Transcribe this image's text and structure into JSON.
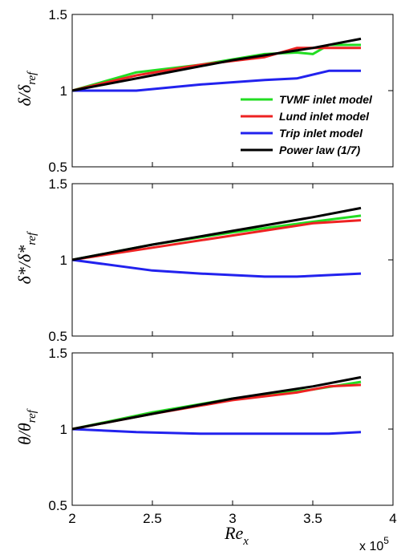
{
  "chart_data": [
    {
      "type": "line",
      "ylabel": {
        "main": "δ/δ",
        "sub": "ref"
      },
      "ylim": [
        0.5,
        1.5
      ],
      "yticks": [
        "0.5",
        "1",
        "1.5"
      ],
      "xlim": [
        200000,
        400000
      ],
      "series": [
        {
          "name": "TVMF inlet model",
          "color": "#22dd22",
          "x": [
            200000,
            240000,
            280000,
            320000,
            340000,
            350000,
            360000,
            380000
          ],
          "y": [
            1.0,
            1.12,
            1.17,
            1.24,
            1.25,
            1.24,
            1.3,
            1.3
          ]
        },
        {
          "name": "Lund inlet model",
          "color": "#ee2222",
          "x": [
            200000,
            240000,
            280000,
            320000,
            340000,
            360000,
            380000
          ],
          "y": [
            1.0,
            1.1,
            1.17,
            1.22,
            1.28,
            1.28,
            1.28
          ]
        },
        {
          "name": "Trip inlet model",
          "color": "#2222ee",
          "x": [
            200000,
            240000,
            280000,
            320000,
            340000,
            360000,
            380000
          ],
          "y": [
            1.0,
            1.0,
            1.04,
            1.07,
            1.08,
            1.13,
            1.13
          ]
        },
        {
          "name": "Power law (1/7)",
          "color": "#000000",
          "x": [
            200000,
            250000,
            300000,
            350000,
            380000
          ],
          "y": [
            1.0,
            1.1,
            1.2,
            1.28,
            1.34
          ]
        }
      ],
      "legend": {
        "position": "bottom-right"
      }
    },
    {
      "type": "line",
      "ylabel": {
        "main": "δ*/δ*",
        "sub": "ref"
      },
      "ylim": [
        0.5,
        1.5
      ],
      "yticks": [
        "0.5",
        "1",
        "1.5"
      ],
      "xlim": [
        200000,
        400000
      ],
      "series": [
        {
          "color": "#22dd22",
          "x": [
            200000,
            250000,
            300000,
            350000,
            380000
          ],
          "y": [
            1.0,
            1.1,
            1.18,
            1.25,
            1.29
          ]
        },
        {
          "color": "#ee2222",
          "x": [
            200000,
            250000,
            300000,
            350000,
            380000
          ],
          "y": [
            1.0,
            1.08,
            1.16,
            1.24,
            1.26
          ]
        },
        {
          "color": "#2222ee",
          "x": [
            200000,
            250000,
            280000,
            320000,
            340000,
            360000,
            380000
          ],
          "y": [
            1.0,
            0.93,
            0.91,
            0.89,
            0.89,
            0.9,
            0.91
          ]
        },
        {
          "color": "#000000",
          "x": [
            200000,
            250000,
            300000,
            350000,
            380000
          ],
          "y": [
            1.0,
            1.1,
            1.19,
            1.28,
            1.34
          ]
        }
      ]
    },
    {
      "type": "line",
      "ylabel": {
        "main": "θ/θ",
        "sub": "ref"
      },
      "ylim": [
        0.5,
        1.5
      ],
      "yticks": [
        "0.5",
        "1",
        "1.5"
      ],
      "xlim": [
        200000,
        400000
      ],
      "xticks": [
        "2",
        "2.5",
        "3",
        "3.5",
        "4"
      ],
      "xticks_values": [
        200000,
        250000,
        300000,
        350000,
        400000
      ],
      "xlabel": {
        "main": "Re",
        "sub": "x"
      },
      "multiplier": {
        "base": "x 10",
        "exp": "5"
      },
      "series": [
        {
          "color": "#22dd22",
          "x": [
            200000,
            250000,
            300000,
            350000,
            380000
          ],
          "y": [
            1.0,
            1.11,
            1.2,
            1.26,
            1.31
          ]
        },
        {
          "color": "#ee2222",
          "x": [
            200000,
            250000,
            300000,
            340000,
            360000,
            380000
          ],
          "y": [
            1.0,
            1.1,
            1.19,
            1.24,
            1.28,
            1.29
          ]
        },
        {
          "color": "#2222ee",
          "x": [
            200000,
            240000,
            280000,
            320000,
            360000,
            380000
          ],
          "y": [
            1.0,
            0.98,
            0.97,
            0.97,
            0.97,
            0.98
          ]
        },
        {
          "color": "#000000",
          "x": [
            200000,
            250000,
            300000,
            350000,
            380000
          ],
          "y": [
            1.0,
            1.1,
            1.2,
            1.28,
            1.34
          ]
        }
      ]
    }
  ]
}
